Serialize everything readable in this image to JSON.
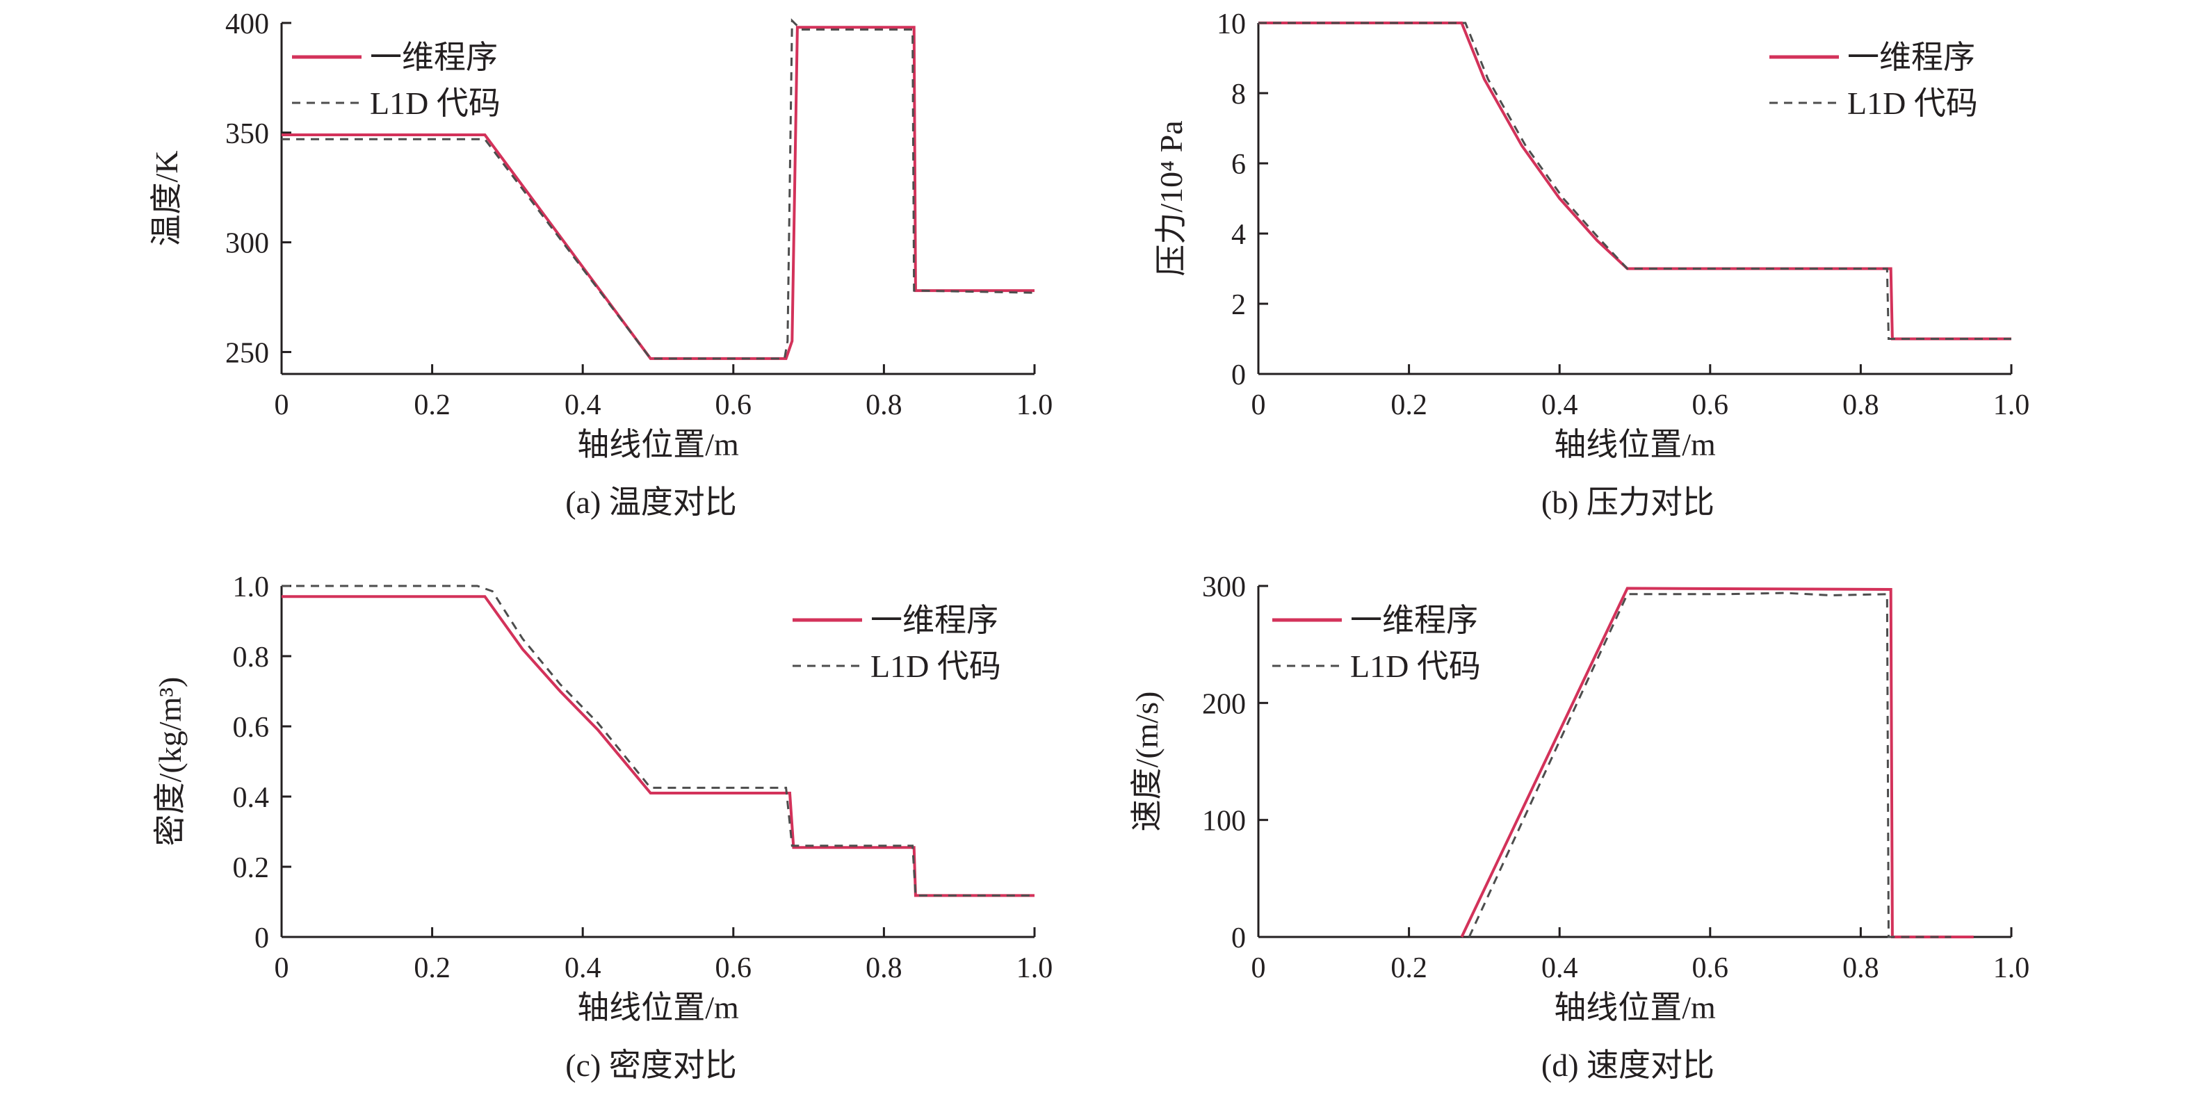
{
  "colors": {
    "series_solid": "#d3325a",
    "series_dashed": "#4d4d4d",
    "axis": "#231f20"
  },
  "chart_data": [
    {
      "id": "a",
      "type": "line",
      "caption": "(a) 温度对比",
      "xlabel": "轴线位置/m",
      "ylabel": "温度/K",
      "xlim": [
        0,
        1.0
      ],
      "ylim": [
        240,
        400
      ],
      "xticks": [
        "0",
        "0.2",
        "0.4",
        "0.6",
        "0.8",
        "1.0"
      ],
      "xtick_values": [
        0,
        0.2,
        0.4,
        0.6,
        0.8,
        1.0
      ],
      "yticks": [
        "250",
        "300",
        "350",
        "400"
      ],
      "ytick_values": [
        250,
        300,
        350,
        400
      ],
      "legend_position": "top-left",
      "series": [
        {
          "name": "一维程序",
          "style": "solid",
          "x": [
            0,
            0.27,
            0.49,
            0.67,
            0.678,
            0.685,
            0.7,
            0.84,
            0.842,
            1.0
          ],
          "y": [
            349,
            349,
            247,
            247,
            255,
            398,
            398,
            398,
            278,
            278
          ]
        },
        {
          "name": "L1D 代码",
          "style": "dashed",
          "x": [
            0,
            0.27,
            0.49,
            0.668,
            0.672,
            0.678,
            0.69,
            0.838,
            0.84,
            1.0
          ],
          "y": [
            347,
            347,
            247,
            247,
            255,
            401,
            397,
            397,
            278,
            277
          ]
        }
      ]
    },
    {
      "id": "b",
      "type": "line",
      "caption": "(b) 压力对比",
      "xlabel": "轴线位置/m",
      "ylabel": "压力/10⁴ Pa",
      "xlim": [
        0,
        1.0
      ],
      "ylim": [
        0,
        10
      ],
      "xticks": [
        "0",
        "0.2",
        "0.4",
        "0.6",
        "0.8",
        "1.0"
      ],
      "xtick_values": [
        0,
        0.2,
        0.4,
        0.6,
        0.8,
        1.0
      ],
      "yticks": [
        "0",
        "2",
        "4",
        "6",
        "8",
        "10"
      ],
      "ytick_values": [
        0,
        2,
        4,
        6,
        8,
        10
      ],
      "legend_position": "top-right",
      "series": [
        {
          "name": "一维程序",
          "style": "solid",
          "x": [
            0,
            0.27,
            0.3,
            0.35,
            0.4,
            0.45,
            0.49,
            0.84,
            0.842,
            1.0
          ],
          "y": [
            10,
            10,
            8.4,
            6.5,
            5.0,
            3.8,
            3.0,
            3.0,
            1.0,
            1.0
          ]
        },
        {
          "name": "L1D 代码",
          "style": "dashed",
          "x": [
            0,
            0.275,
            0.305,
            0.355,
            0.405,
            0.455,
            0.49,
            0.835,
            0.837,
            1.0
          ],
          "y": [
            10,
            10,
            8.4,
            6.5,
            5.0,
            3.8,
            3.0,
            3.0,
            1.0,
            1.0
          ]
        }
      ]
    },
    {
      "id": "c",
      "type": "line",
      "caption": "(c) 密度对比",
      "xlabel": "轴线位置/m",
      "ylabel": "密度/(kg/m³)",
      "xlim": [
        0,
        1.0
      ],
      "ylim": [
        0,
        1.0
      ],
      "xticks": [
        "0",
        "0.2",
        "0.4",
        "0.6",
        "0.8",
        "1.0"
      ],
      "xtick_values": [
        0,
        0.2,
        0.4,
        0.6,
        0.8,
        1.0
      ],
      "yticks": [
        "0",
        "0.2",
        "0.4",
        "0.6",
        "0.8",
        "1.0"
      ],
      "ytick_values": [
        0,
        0.2,
        0.4,
        0.6,
        0.8,
        1.0
      ],
      "legend_position": "top-right",
      "series": [
        {
          "name": "一维程序",
          "style": "solid",
          "x": [
            0,
            0.27,
            0.32,
            0.37,
            0.42,
            0.49,
            0.675,
            0.68,
            0.84,
            0.842,
            1.0
          ],
          "y": [
            0.97,
            0.97,
            0.82,
            0.7,
            0.59,
            0.41,
            0.41,
            0.255,
            0.255,
            0.118,
            0.118
          ]
        },
        {
          "name": "L1D 代码",
          "style": "dashed",
          "x": [
            0,
            0.26,
            0.28,
            0.32,
            0.37,
            0.42,
            0.49,
            0.67,
            0.678,
            0.838,
            0.842,
            1.0
          ],
          "y": [
            1.0,
            1.0,
            0.985,
            0.85,
            0.72,
            0.61,
            0.425,
            0.425,
            0.26,
            0.26,
            0.118,
            0.118
          ]
        }
      ]
    },
    {
      "id": "d",
      "type": "line",
      "caption": "(d) 速度对比",
      "xlabel": "轴线位置/m",
      "ylabel": "速度/(m/s)",
      "xlim": [
        0,
        1.0
      ],
      "ylim": [
        0,
        300
      ],
      "xticks": [
        "0",
        "0.2",
        "0.4",
        "0.6",
        "0.8",
        "1.0"
      ],
      "xtick_values": [
        0,
        0.2,
        0.4,
        0.6,
        0.8,
        1.0
      ],
      "yticks": [
        "0",
        "100",
        "200",
        "300"
      ],
      "ytick_values": [
        0,
        100,
        200,
        300
      ],
      "legend_position": "top-left",
      "series": [
        {
          "name": "一维程序",
          "style": "solid",
          "x": [
            0.27,
            0.49,
            0.84,
            0.842,
            0.95
          ],
          "y": [
            0,
            298,
            297,
            0,
            0
          ]
        },
        {
          "name": "L1D 代码",
          "style": "dashed",
          "x": [
            0.28,
            0.49,
            0.55,
            0.62,
            0.7,
            0.76,
            0.835,
            0.837,
            0.92
          ],
          "y": [
            0,
            293,
            293,
            293,
            294,
            292,
            293,
            0,
            0
          ]
        }
      ]
    }
  ]
}
